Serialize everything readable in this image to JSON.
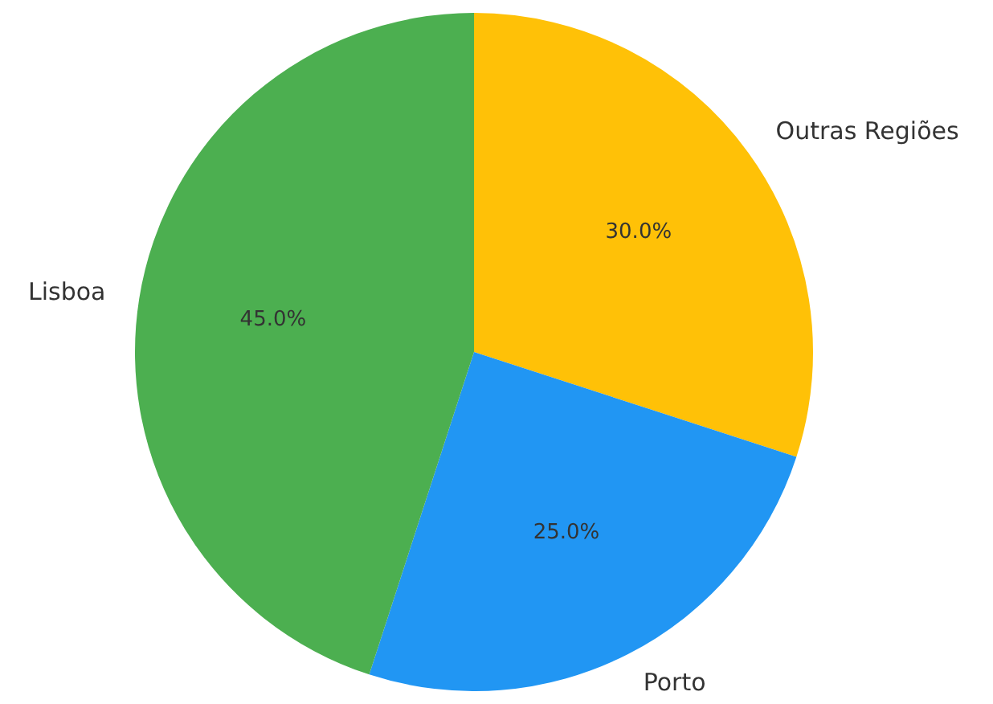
{
  "chart_data": {
    "type": "pie",
    "categories": [
      "Outras Regiões",
      "Porto",
      "Lisboa"
    ],
    "values": [
      30,
      25,
      45
    ],
    "colors": [
      "#ffc107",
      "#2196f3",
      "#4caf50"
    ],
    "value_labels": [
      "30.0%",
      "25.0%",
      "45.0%"
    ],
    "legend": false
  }
}
